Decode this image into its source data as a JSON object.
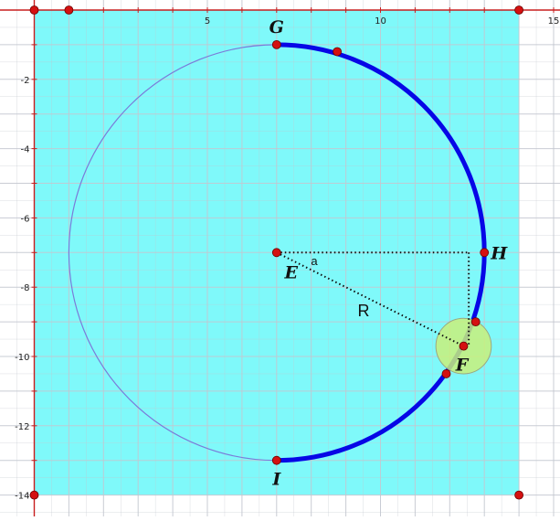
{
  "figure": {
    "axes": {
      "x_tick_labels": [
        "5",
        "10",
        "15"
      ],
      "y_tick_labels": [
        "-2",
        "-4",
        "-6",
        "-8",
        "-10",
        "-12",
        "-14"
      ]
    },
    "points": [
      {
        "id": "G",
        "label": "G"
      },
      {
        "id": "H",
        "label": "H"
      },
      {
        "id": "E",
        "label": "E"
      },
      {
        "id": "F",
        "label": "F"
      },
      {
        "id": "I",
        "label": "I"
      }
    ],
    "annotations": {
      "radius_label": "R",
      "angle_label": "a"
    },
    "colors": {
      "background_region": "#7ff9fa",
      "grid": "#c3c7cf",
      "axis": "#c81e1e",
      "circle_thin": "#7b7bd9",
      "arc_thick": "#0707e6",
      "point_fill": "#d41111",
      "highlight_fill": "#c8f07a"
    }
  },
  "chart_data": {
    "type": "diagram",
    "x_range": [
      -1,
      15.7
    ],
    "y_range": [
      -14.1,
      0.8
    ],
    "region": {
      "x": [
        0,
        14
      ],
      "y": [
        -14,
        0
      ]
    },
    "circle": {
      "center": [
        7,
        -7
      ],
      "radius": 6
    },
    "arc_start_deg": 90,
    "arc_end_deg": -90,
    "named_points": [
      {
        "id": "G",
        "x": 7,
        "y": -1
      },
      {
        "id": "H",
        "x": 13,
        "y": -7
      },
      {
        "id": "E",
        "x": 7,
        "y": -7
      },
      {
        "id": "F",
        "x": 12.4,
        "y": -9.7
      },
      {
        "id": "I",
        "x": 7,
        "y": -13
      }
    ],
    "extra_points": [
      {
        "x": 0,
        "y": 0
      },
      {
        "x": 1,
        "y": 0
      },
      {
        "x": 14,
        "y": 0
      },
      {
        "x": 0,
        "y": -14
      },
      {
        "x": 14,
        "y": -14
      },
      {
        "x": 8.75,
        "y": -1.2
      },
      {
        "x": 12.75,
        "y": -9.0
      },
      {
        "x": 11.9,
        "y": -10.5
      }
    ],
    "highlight_circle": {
      "center": [
        12.4,
        -9.7
      ],
      "radius": 0.8
    },
    "dotted_lines": [
      {
        "from": [
          7,
          -7
        ],
        "to": [
          12.55,
          -7
        ]
      },
      {
        "from": [
          12.55,
          -7
        ],
        "to": [
          12.55,
          -9.7
        ]
      },
      {
        "from": [
          7,
          -7
        ],
        "to": [
          12.4,
          -9.7
        ]
      }
    ],
    "grid": true
  }
}
